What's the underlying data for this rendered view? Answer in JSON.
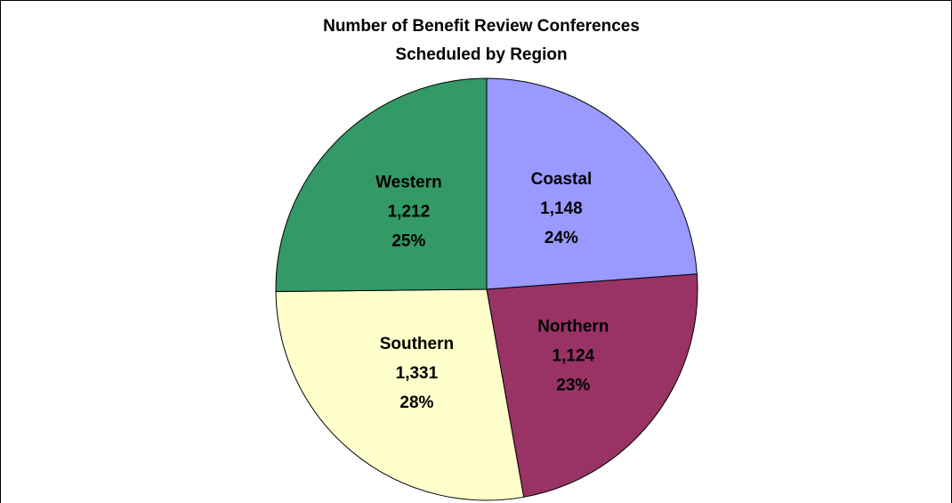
{
  "chart_data": {
    "type": "pie",
    "title": "Number of Benefit Review Conferences",
    "subtitle": "Scheduled by Region",
    "categories": [
      "Coastal",
      "Northern",
      "Southern",
      "Western"
    ],
    "values": [
      1148,
      1124,
      1331,
      1212
    ],
    "value_labels": [
      "1,148",
      "1,124",
      "1,331",
      "1,212"
    ],
    "percent_labels": [
      "24%",
      "23%",
      "28%",
      "25%"
    ],
    "colors": [
      "#9999ff",
      "#993366",
      "#ffffcc",
      "#339966"
    ]
  }
}
